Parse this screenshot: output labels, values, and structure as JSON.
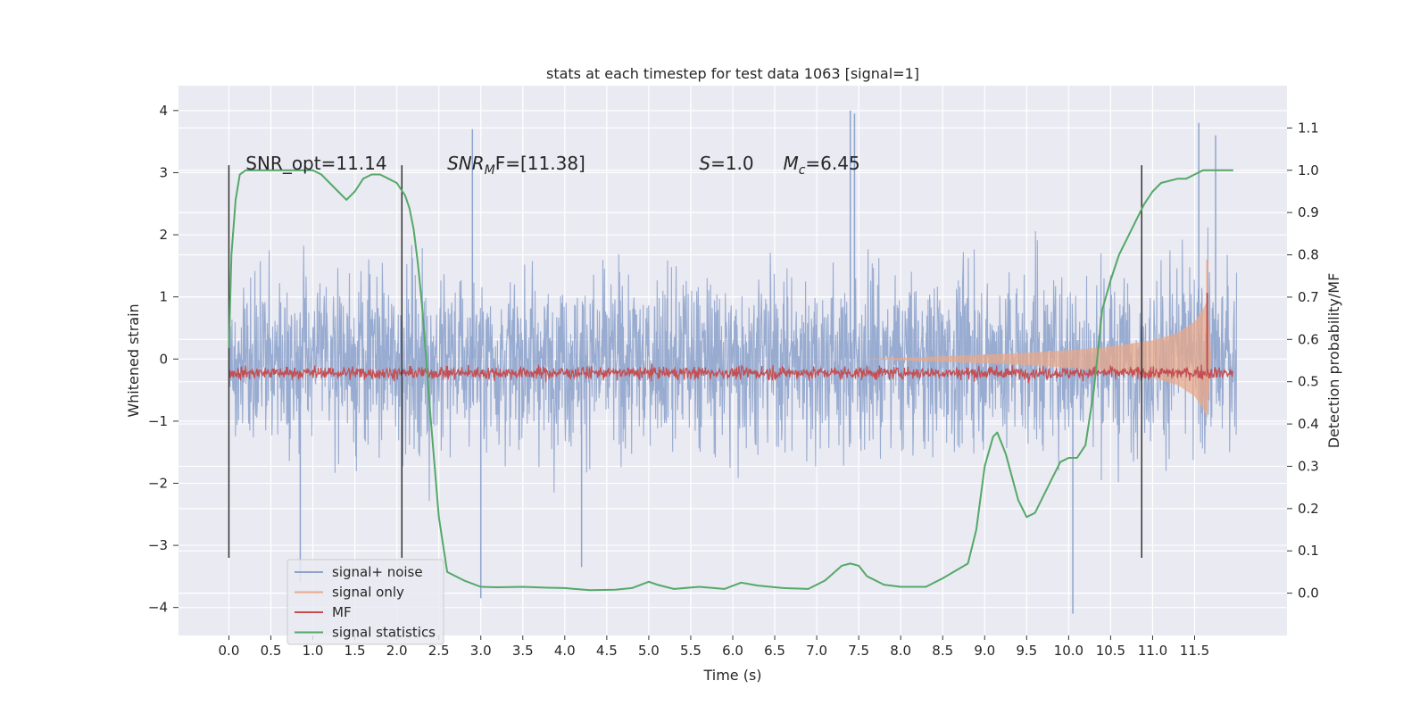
{
  "chart_data": {
    "type": "line",
    "title": "stats at each timestep for test data 1063 [signal=1]",
    "xlabel": "Time (s)",
    "ylabel": "Whitened strain",
    "y2label": "Detection probability/MF",
    "xlim": [
      -0.6,
      12.6
    ],
    "ylim": [
      -4.45,
      4.4
    ],
    "y2lim": [
      -0.1,
      1.2
    ],
    "x_ticks": [
      0.0,
      0.5,
      1.0,
      1.5,
      2.0,
      2.5,
      3.0,
      3.5,
      4.0,
      4.5,
      5.0,
      5.5,
      6.0,
      6.5,
      7.0,
      7.5,
      8.0,
      8.5,
      9.0,
      9.5,
      10.0,
      10.5,
      11.0,
      11.5
    ],
    "x_tick_labels": [
      "0.0",
      "0.5",
      "1.0",
      "1.5",
      "2.0",
      "2.5",
      "3.0",
      "3.5",
      "4.0",
      "4.5",
      "5.0",
      "5.5",
      "6.0",
      "6.5",
      "7.0",
      "7.5",
      "8.0",
      "8.5",
      "9.0",
      "9.5",
      "10.0",
      "10.5",
      "11.0",
      "11.5"
    ],
    "y_ticks": [
      4,
      3,
      2,
      1,
      0,
      -1,
      -2,
      -3,
      -4
    ],
    "y_tick_labels": [
      "4",
      "3",
      "2",
      "1",
      "0",
      "−1",
      "−2",
      "−3",
      "−4"
    ],
    "y2_ticks": [
      1.1,
      1.0,
      0.9,
      0.8,
      0.7,
      0.6,
      0.5,
      0.4,
      0.3,
      0.2,
      0.1,
      0.0
    ],
    "y2_tick_labels": [
      "1.1",
      "1.0",
      "0.9",
      "0.8",
      "0.7",
      "0.6",
      "0.5",
      "0.4",
      "0.3",
      "0.2",
      "0.1",
      "0.0"
    ],
    "grid": true,
    "legend_position": "lower-left",
    "series": [
      {
        "name": "signal+ noise",
        "axis": "left",
        "color": "#8fa4cc",
        "description_shape": "dense noise spanning roughly -2 to +2, spikes to about ±4",
        "x_range": [
          0.0,
          12.0
        ],
        "typical_range": [
          -2.0,
          2.0
        ],
        "peaks": [
          {
            "x": 2.9,
            "y": 3.7
          },
          {
            "x": 3.0,
            "y": -3.85
          },
          {
            "x": 7.4,
            "y": 4.0
          },
          {
            "x": 7.45,
            "y": 3.95
          },
          {
            "x": 10.05,
            "y": -4.1
          },
          {
            "x": 11.55,
            "y": 3.8
          },
          {
            "x": 11.75,
            "y": 3.6
          },
          {
            "x": 4.2,
            "y": -3.35
          },
          {
            "x": 0.85,
            "y": -3.6
          }
        ]
      },
      {
        "name": "signal only",
        "axis": "left",
        "color": "#e8a88a",
        "description_shape": "chirp envelope growing from ~0 at 8 s to about ±0.9 near 11.6 s",
        "envelope": [
          {
            "x": 7.5,
            "a": 0.0
          },
          {
            "x": 8.0,
            "a": 0.02
          },
          {
            "x": 9.0,
            "a": 0.07
          },
          {
            "x": 9.5,
            "a": 0.1
          },
          {
            "x": 10.0,
            "a": 0.14
          },
          {
            "x": 10.5,
            "a": 0.2
          },
          {
            "x": 11.0,
            "a": 0.3
          },
          {
            "x": 11.3,
            "a": 0.42
          },
          {
            "x": 11.5,
            "a": 0.6
          },
          {
            "x": 11.6,
            "a": 0.8
          },
          {
            "x": 11.65,
            "a": 0.95
          },
          {
            "x": 11.7,
            "a": 0.0
          }
        ],
        "peak": {
          "x": 11.65,
          "y": 1.6
        }
      },
      {
        "name": "MF",
        "axis": "right",
        "color": "#c44e52",
        "description_shape": "thin noisy band between about 0.5 and 0.55 on the right axis, spike near 11.65 s",
        "band_range": [
          0.5,
          0.56
        ],
        "spike": {
          "x": 11.65,
          "y": 0.71
        }
      },
      {
        "name": "signal statistics",
        "axis": "right",
        "color": "#55a868",
        "x": [
          0.0,
          0.03,
          0.08,
          0.13,
          0.2,
          0.3,
          0.5,
          0.8,
          1.0,
          1.1,
          1.2,
          1.3,
          1.4,
          1.5,
          1.6,
          1.7,
          1.8,
          1.9,
          2.0,
          2.1,
          2.15,
          2.2,
          2.25,
          2.3,
          2.35,
          2.4,
          2.45,
          2.5,
          2.6,
          2.8,
          3.0,
          3.2,
          3.5,
          3.8,
          4.0,
          4.3,
          4.6,
          4.8,
          5.0,
          5.1,
          5.3,
          5.6,
          5.9,
          6.1,
          6.3,
          6.6,
          6.9,
          7.1,
          7.3,
          7.4,
          7.5,
          7.6,
          7.8,
          8.0,
          8.3,
          8.5,
          8.8,
          8.9,
          9.0,
          9.1,
          9.15,
          9.25,
          9.4,
          9.5,
          9.6,
          9.8,
          9.9,
          10.0,
          10.1,
          10.2,
          10.3,
          10.4,
          10.5,
          10.6,
          10.8,
          10.9,
          11.0,
          11.1,
          11.3,
          11.4,
          11.5,
          11.6,
          11.7,
          11.8,
          11.96
        ],
        "y": [
          0.58,
          0.8,
          0.93,
          0.99,
          1.0,
          1.0,
          1.0,
          1.0,
          1.0,
          0.99,
          0.97,
          0.95,
          0.93,
          0.95,
          0.98,
          0.99,
          0.99,
          0.98,
          0.97,
          0.94,
          0.91,
          0.86,
          0.78,
          0.68,
          0.55,
          0.42,
          0.3,
          0.18,
          0.05,
          0.03,
          0.015,
          0.014,
          0.015,
          0.013,
          0.012,
          0.007,
          0.008,
          0.012,
          0.027,
          0.02,
          0.01,
          0.015,
          0.01,
          0.025,
          0.018,
          0.012,
          0.01,
          0.03,
          0.065,
          0.07,
          0.065,
          0.04,
          0.02,
          0.015,
          0.015,
          0.035,
          0.07,
          0.15,
          0.3,
          0.37,
          0.38,
          0.33,
          0.22,
          0.18,
          0.19,
          0.27,
          0.31,
          0.32,
          0.32,
          0.35,
          0.48,
          0.67,
          0.74,
          0.8,
          0.88,
          0.92,
          0.95,
          0.97,
          0.98,
          0.98,
          0.99,
          1.0,
          1.0,
          1.0,
          1.0
        ]
      }
    ],
    "vertical_markers": [
      0.0,
      2.06,
      10.87
    ],
    "annotations": [
      {
        "text_main": "SNR_opt=11.14",
        "sub": "",
        "rest": "",
        "italic_main": false,
        "x": 0.2,
        "y": 3.15
      },
      {
        "text_main": "SNR",
        "sub": "M",
        "rest": "F=[11.38]",
        "italic_main": true,
        "x": 2.6,
        "y": 3.15
      },
      {
        "text_main": "S",
        "sub": "",
        "rest": "=1.0",
        "italic_main": true,
        "x": 5.6,
        "y": 3.15
      },
      {
        "text_main": "M",
        "sub": "c",
        "rest": "=6.45",
        "italic_main": true,
        "x": 6.6,
        "y": 3.15
      }
    ]
  },
  "legend": {
    "items": [
      {
        "label": "signal+ noise",
        "color": "#8fa4cc"
      },
      {
        "label": "signal only",
        "color": "#e8a88a"
      },
      {
        "label": "MF",
        "color": "#c44e52"
      },
      {
        "label": "signal statistics",
        "color": "#55a868"
      }
    ]
  }
}
